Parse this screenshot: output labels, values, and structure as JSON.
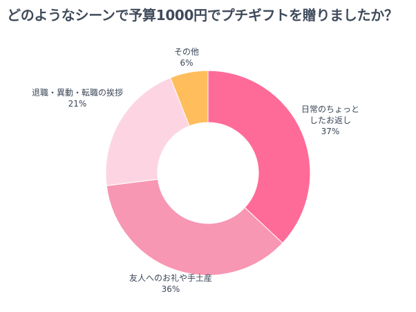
{
  "title": "どのようなシーンで予算1000円でプチギフトを贈りましたか？",
  "chart_data": {
    "type": "pie",
    "variant": "donut",
    "title": "どのようなシーンで予算1000円でプチギフトを贈りましたか？",
    "slices": [
      {
        "label": "日常のちょっとしたお返し",
        "label_lines": [
          "日常のちょっと",
          "したお返し"
        ],
        "value": 37,
        "display": "37%",
        "color": "#ff6b98"
      },
      {
        "label": "友人へのお礼や手土産",
        "label_lines": [
          "友人へのお礼や手土産"
        ],
        "value": 36,
        "display": "36%",
        "color": "#f797b4"
      },
      {
        "label": "退職・異動・転職の挨拶",
        "label_lines": [
          "退職・異動・転職の挨拶"
        ],
        "value": 21,
        "display": "21%",
        "color": "#fdd5e2"
      },
      {
        "label": "その他",
        "label_lines": [
          "その他"
        ],
        "value": 6,
        "display": "6%",
        "color": "#ffbd5c"
      }
    ],
    "start": "top",
    "direction": "clockwise",
    "legend": "none"
  }
}
